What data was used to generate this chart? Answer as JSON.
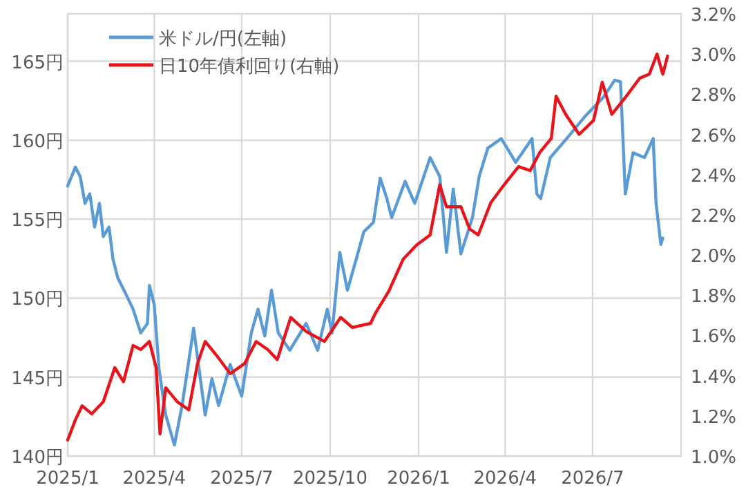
{
  "chart_data": {
    "type": "line",
    "xlim": [
      "2025-01-01",
      "2026-10-01"
    ],
    "xticks": [
      {
        "value": "2025-01-01",
        "label": "2025/1"
      },
      {
        "value": "2025-04-01",
        "label": "2025/4"
      },
      {
        "value": "2025-07-01",
        "label": "2025/7"
      },
      {
        "value": "2025-10-01",
        "label": "2025/10"
      },
      {
        "value": "2026-01-01",
        "label": "2026/1"
      },
      {
        "value": "2026-04-01",
        "label": "2026/4"
      },
      {
        "value": "2026-07-01",
        "label": "2026/7"
      }
    ],
    "ylim": [
      140,
      168
    ],
    "yticks": [
      {
        "value": 140,
        "label": "140円"
      },
      {
        "value": 145,
        "label": "145円"
      },
      {
        "value": 150,
        "label": "150円"
      },
      {
        "value": 155,
        "label": "155円"
      },
      {
        "value": 160,
        "label": "160円"
      },
      {
        "value": 165,
        "label": "165円"
      }
    ],
    "y2lim": [
      1.0,
      3.2
    ],
    "y2ticks": [
      {
        "value": 1.0,
        "label": "1.0%"
      },
      {
        "value": 1.2,
        "label": "1.2%"
      },
      {
        "value": 1.4,
        "label": "1.4%"
      },
      {
        "value": 1.6,
        "label": "1.6%"
      },
      {
        "value": 1.8,
        "label": "1.8%"
      },
      {
        "value": 2.0,
        "label": "2.0%"
      },
      {
        "value": 2.2,
        "label": "2.2%"
      },
      {
        "value": 2.4,
        "label": "2.4%"
      },
      {
        "value": 2.6,
        "label": "2.6%"
      },
      {
        "value": 2.8,
        "label": "2.8%"
      },
      {
        "value": 3.0,
        "label": "3.0%"
      },
      {
        "value": 3.2,
        "label": "3.2%"
      }
    ],
    "grid": true,
    "legend": "top left",
    "series": [
      {
        "name": "米ドル/円(左軸)",
        "color": "#5b9bd5",
        "axis": "y",
        "x": [
          "2025-01-01",
          "2025-01-09",
          "2025-01-14",
          "2025-01-19",
          "2025-01-24",
          "2025-01-29",
          "2025-02-03",
          "2025-02-07",
          "2025-02-13",
          "2025-02-17",
          "2025-02-22",
          "2025-03-03",
          "2025-03-10",
          "2025-03-18",
          "2025-03-25",
          "2025-03-27",
          "2025-04-01",
          "2025-04-06",
          "2025-04-13",
          "2025-04-22",
          "2025-04-30",
          "2025-05-12",
          "2025-05-24",
          "2025-05-31",
          "2025-06-07",
          "2025-06-19",
          "2025-07-01",
          "2025-07-11",
          "2025-07-18",
          "2025-07-25",
          "2025-08-01",
          "2025-08-08",
          "2025-08-20",
          "2025-09-06",
          "2025-09-18",
          "2025-09-28",
          "2025-10-03",
          "2025-10-11",
          "2025-10-19",
          "2025-10-31",
          "2025-11-05",
          "2025-11-15",
          "2025-11-22",
          "2025-11-29",
          "2025-12-04",
          "2025-12-18",
          "2025-12-28",
          "2026-01-13",
          "2026-01-23",
          "2026-01-30",
          "2026-02-06",
          "2026-02-14",
          "2026-02-26",
          "2026-03-05",
          "2026-03-14",
          "2026-03-28",
          "2026-04-12",
          "2026-04-29",
          "2026-05-04",
          "2026-05-08",
          "2026-05-18",
          "2026-06-04",
          "2026-06-23",
          "2026-07-12",
          "2026-07-24",
          "2026-07-30",
          "2026-08-04",
          "2026-08-12",
          "2026-08-24",
          "2026-09-02",
          "2026-09-05",
          "2026-09-10",
          "2026-09-12"
        ],
        "values": [
          157.1,
          158.3,
          157.7,
          156.0,
          156.6,
          154.5,
          156.0,
          153.9,
          154.5,
          152.5,
          151.3,
          150.2,
          149.3,
          147.8,
          148.4,
          150.8,
          149.6,
          145.5,
          142.6,
          140.7,
          143.2,
          148.1,
          142.6,
          144.9,
          143.2,
          145.8,
          143.8,
          147.8,
          149.3,
          147.6,
          150.5,
          147.8,
          146.7,
          148.4,
          146.7,
          149.3,
          147.8,
          152.9,
          150.5,
          153.1,
          154.2,
          154.8,
          157.6,
          156.3,
          155.1,
          157.4,
          156.0,
          158.9,
          157.7,
          152.9,
          156.9,
          152.8,
          155.1,
          157.7,
          159.5,
          160.1,
          158.6,
          160.1,
          156.6,
          156.3,
          158.9,
          160.1,
          161.5,
          162.7,
          163.8,
          163.7,
          156.6,
          159.2,
          158.9,
          160.1,
          156.0,
          153.4,
          153.8
        ]
      },
      {
        "name": "日10年債利回り(右軸)",
        "color": "#e8141b",
        "axis": "y2",
        "x": [
          "2025-01-01",
          "2025-01-09",
          "2025-01-16",
          "2025-01-26",
          "2025-02-07",
          "2025-02-19",
          "2025-02-28",
          "2025-03-10",
          "2025-03-18",
          "2025-03-27",
          "2025-04-03",
          "2025-04-07",
          "2025-04-13",
          "2025-04-25",
          "2025-05-07",
          "2025-05-16",
          "2025-05-24",
          "2025-06-05",
          "2025-06-19",
          "2025-07-04",
          "2025-07-16",
          "2025-07-28",
          "2025-08-07",
          "2025-08-21",
          "2025-09-06",
          "2025-09-25",
          "2025-10-12",
          "2025-10-24",
          "2025-11-12",
          "2025-11-17",
          "2025-12-01",
          "2025-12-16",
          "2025-12-30",
          "2026-01-13",
          "2026-01-23",
          "2026-01-30",
          "2026-02-14",
          "2026-02-23",
          "2026-03-04",
          "2026-03-17",
          "2026-03-31",
          "2026-04-15",
          "2026-04-27",
          "2026-05-07",
          "2026-05-19",
          "2026-05-24",
          "2026-06-03",
          "2026-06-17",
          "2026-07-02",
          "2026-07-11",
          "2026-07-21",
          "2026-08-05",
          "2026-08-19",
          "2026-08-29",
          "2026-09-06",
          "2026-09-12",
          "2026-09-17"
        ],
        "values": [
          1.08,
          1.18,
          1.25,
          1.21,
          1.27,
          1.44,
          1.37,
          1.55,
          1.53,
          1.57,
          1.44,
          1.11,
          1.34,
          1.27,
          1.23,
          1.46,
          1.57,
          1.5,
          1.41,
          1.46,
          1.57,
          1.53,
          1.48,
          1.69,
          1.62,
          1.57,
          1.69,
          1.64,
          1.66,
          1.71,
          1.82,
          1.98,
          2.05,
          2.1,
          2.35,
          2.24,
          2.24,
          2.13,
          2.1,
          2.26,
          2.35,
          2.44,
          2.42,
          2.51,
          2.58,
          2.79,
          2.7,
          2.6,
          2.67,
          2.86,
          2.7,
          2.79,
          2.88,
          2.9,
          3.0,
          2.9,
          2.99
        ]
      }
    ]
  }
}
